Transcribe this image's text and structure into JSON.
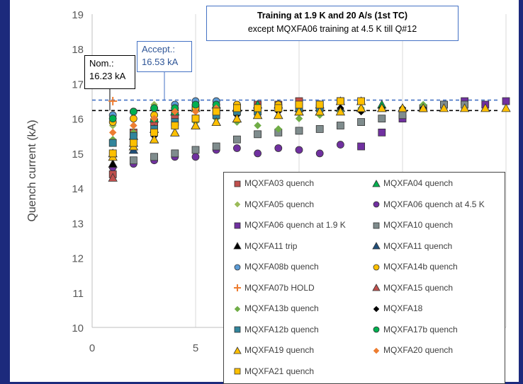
{
  "chart_data": {
    "type": "scatter",
    "title_line1": "Training at 1.9 K and 20 A/s (1st TC)",
    "title_line2": "except MQXFA06 training at 4.5 K till Q#12",
    "ylabel": "Quench current (kA)",
    "xlabel": "",
    "xlim": [
      0,
      20
    ],
    "ylim": [
      10,
      19
    ],
    "x_ticks": [
      "0",
      "5",
      "0"
    ],
    "y_ticks": [
      "10",
      "11",
      "12",
      "13",
      "14",
      "15",
      "16",
      "17",
      "18",
      "19"
    ],
    "grid": "vertical",
    "legend_placement": "bottom-right",
    "reference_lines": [
      {
        "name": "Nom.",
        "label_line1": "Nom.:",
        "label_line2": "16.23 kA",
        "value": 16.23,
        "color": "#000000"
      },
      {
        "name": "Accept.",
        "label_line1": "Accept.:",
        "label_line2": "16.53 kA",
        "value": 16.53,
        "color": "#4472c4"
      }
    ],
    "series": [
      {
        "name": "MQXFA03 quench",
        "marker": "square",
        "color": "#c0504d",
        "x": [
          1,
          2,
          3,
          4,
          5,
          6,
          7,
          8,
          9,
          10,
          11,
          12
        ],
        "y": [
          14.4,
          15.6,
          15.9,
          16.1,
          16.3,
          16.2,
          16.3,
          16.4,
          16.4,
          16.5,
          16.4,
          16.5
        ]
      },
      {
        "name": "MQXFA04 quench",
        "marker": "triangle",
        "color": "#00b050",
        "x": [
          1,
          2,
          3,
          4,
          5,
          6,
          7,
          8,
          9,
          10,
          11,
          12,
          13,
          14
        ],
        "y": [
          15.0,
          15.5,
          16.0,
          16.2,
          16.3,
          16.4,
          16.3,
          16.4,
          16.4,
          16.3,
          16.4,
          16.5,
          16.5,
          16.4
        ]
      },
      {
        "name": "MQXFA05 quench",
        "marker": "diamond",
        "color": "#9bbb59",
        "x": [
          1,
          2,
          3,
          4,
          5,
          6,
          7
        ],
        "y": [
          15.8,
          16.2,
          16.4,
          16.4,
          16.5,
          16.5,
          16.4
        ]
      },
      {
        "name": "MQXFA06 quench at 4.5 K",
        "marker": "circle",
        "color": "#7030a0",
        "x": [
          1,
          2,
          3,
          4,
          5,
          6,
          7,
          8,
          9,
          10,
          11,
          12
        ],
        "y": [
          14.6,
          14.7,
          14.8,
          14.9,
          14.9,
          15.1,
          15.15,
          15.0,
          15.15,
          15.1,
          15.0,
          15.25
        ]
      },
      {
        "name": "MQXFA06 quench at 1.9 K",
        "marker": "square",
        "color": "#7030a0",
        "x": [
          13,
          14,
          15,
          16,
          17,
          18,
          19,
          20
        ],
        "y": [
          15.2,
          15.6,
          16.0,
          16.3,
          16.4,
          16.5,
          16.4,
          16.5
        ]
      },
      {
        "name": "MQXFA10 quench",
        "marker": "square",
        "color": "#7f8c8d",
        "x": [
          2,
          3,
          4,
          5,
          6,
          7,
          8,
          9,
          10,
          11,
          12,
          13,
          14,
          15,
          16,
          17,
          18
        ],
        "y": [
          14.8,
          14.9,
          15.0,
          15.1,
          15.2,
          15.4,
          15.55,
          15.6,
          15.65,
          15.7,
          15.8,
          15.9,
          16.0,
          16.1,
          16.3,
          16.4,
          16.4
        ]
      },
      {
        "name": "MQXFA11 trip",
        "marker": "triangle",
        "color": "#000000",
        "x": [
          1,
          2
        ],
        "y": [
          14.7,
          15.3
        ]
      },
      {
        "name": "MQXFA11 quench",
        "marker": "triangle",
        "color": "#1f4e79",
        "x": [
          2,
          3,
          4,
          5,
          6,
          7,
          8,
          9,
          10,
          11,
          12,
          13,
          14,
          15
        ],
        "y": [
          15.1,
          15.4,
          15.6,
          15.8,
          15.9,
          16.0,
          16.1,
          16.1,
          16.2,
          16.2,
          16.3,
          16.3,
          16.3,
          16.3
        ]
      },
      {
        "name": "MQXFA08b quench",
        "marker": "circle",
        "color": "#5b9bd5",
        "x": [
          1,
          2,
          3,
          4,
          5,
          6,
          7,
          8
        ],
        "y": [
          16.1,
          16.2,
          16.3,
          16.4,
          16.5,
          16.5,
          16.4,
          16.3
        ]
      },
      {
        "name": "MQXFA14b quench",
        "marker": "circle",
        "color": "#ffc000",
        "x": [
          1,
          2,
          3,
          4,
          5,
          6,
          7,
          8,
          9
        ],
        "y": [
          15.9,
          16.0,
          16.1,
          16.3,
          16.3,
          16.4,
          16.4,
          16.3,
          16.4
        ]
      },
      {
        "name": "MQXFA07b HOLD",
        "marker": "plus",
        "color": "#ed7d31",
        "x": [
          1
        ],
        "y": [
          16.5
        ]
      },
      {
        "name": "MQXFA15 quench",
        "marker": "triangle",
        "color": "#c0504d",
        "x": [
          1,
          2,
          3
        ],
        "y": [
          14.3,
          15.2,
          15.7
        ]
      },
      {
        "name": "MQXFA13b quench",
        "marker": "diamond",
        "color": "#70ad47",
        "x": [
          1,
          2,
          3,
          4,
          5,
          6,
          7,
          8,
          9,
          10,
          11,
          12,
          13,
          14,
          15,
          16
        ],
        "y": [
          15.4,
          15.6,
          15.7,
          15.8,
          15.9,
          16.0,
          15.9,
          15.8,
          15.7,
          16.0,
          16.1,
          16.2,
          16.3,
          16.3,
          16.3,
          16.4
        ]
      },
      {
        "name": "MQXFA18",
        "marker": "diamond",
        "color": "#000000",
        "x": [
          1,
          2,
          3,
          4,
          5,
          6,
          7,
          8,
          9,
          10,
          11,
          12,
          13,
          14,
          15,
          16
        ],
        "y": [
          15.0,
          15.3,
          15.5,
          15.8,
          16.0,
          16.1,
          16.1,
          16.2,
          16.2,
          16.2,
          16.3,
          16.3,
          16.2,
          16.3,
          16.3,
          16.3
        ]
      },
      {
        "name": "MQXFA12b quench",
        "marker": "square",
        "color": "#31859c",
        "x": [
          1,
          2,
          3,
          4,
          5,
          6,
          7,
          8,
          9,
          10,
          11
        ],
        "y": [
          15.3,
          15.5,
          15.7,
          15.9,
          16.0,
          16.1,
          16.2,
          16.2,
          16.3,
          16.3,
          16.3
        ]
      },
      {
        "name": "MQXFA17b quench",
        "marker": "circle",
        "color": "#00b050",
        "x": [
          1,
          2,
          3,
          4,
          5,
          6
        ],
        "y": [
          16.0,
          16.2,
          16.3,
          16.3,
          16.4,
          16.4
        ]
      },
      {
        "name": "MQXFA19 quench",
        "marker": "triangle",
        "color": "#ffc000",
        "x": [
          1,
          2,
          3,
          4,
          5,
          6,
          7,
          8,
          9,
          10,
          11,
          12,
          13,
          14,
          15,
          16,
          17,
          18,
          19,
          20
        ],
        "y": [
          14.9,
          15.2,
          15.4,
          15.6,
          15.8,
          15.9,
          16.0,
          16.1,
          16.1,
          16.2,
          16.2,
          16.2,
          16.3,
          16.3,
          16.3,
          16.3,
          16.3,
          16.3,
          16.3,
          16.3
        ]
      },
      {
        "name": "MQXFA20 quench",
        "marker": "diamond",
        "color": "#ed7d31",
        "x": [
          1,
          2,
          3,
          4,
          5,
          6,
          7,
          8,
          9
        ],
        "y": [
          15.6,
          15.8,
          16.0,
          16.2,
          16.2,
          16.3,
          16.3,
          16.3,
          16.3
        ]
      },
      {
        "name": "MQXFA21 quench",
        "marker": "square",
        "color": "#ffc000",
        "x": [
          1,
          2,
          3,
          4,
          5,
          6,
          7,
          8,
          9,
          10,
          11,
          12,
          13
        ],
        "y": [
          15.0,
          15.3,
          15.6,
          15.8,
          16.0,
          16.2,
          16.3,
          16.3,
          16.3,
          16.4,
          16.4,
          16.5,
          16.5
        ]
      }
    ]
  }
}
